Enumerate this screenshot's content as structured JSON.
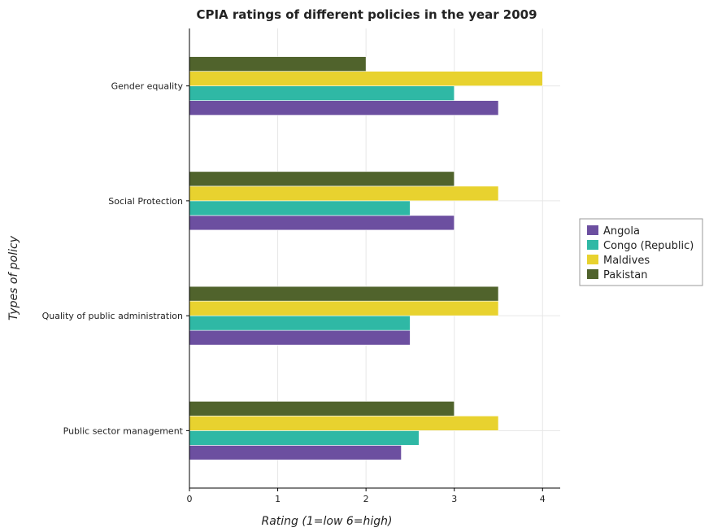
{
  "chart_data": {
    "type": "bar",
    "orientation": "horizontal",
    "title": "CPIA ratings of different policies in the year 2009",
    "xlabel": "Rating (1=low 6=high)",
    "ylabel": "Types of policy",
    "xlim": [
      0,
      4.2
    ],
    "xticks": [
      0,
      1,
      2,
      3,
      4
    ],
    "grid": true,
    "legend_position": "right",
    "categories": [
      "Gender equality",
      "Social Protection",
      "Quality of public administration",
      "Public sector management"
    ],
    "series": [
      {
        "name": "Angola",
        "color": "#6c4fa0",
        "values": [
          3.5,
          3.0,
          2.5,
          2.4
        ]
      },
      {
        "name": "Congo (Republic)",
        "color": "#2fb8a5",
        "values": [
          3.0,
          2.5,
          2.5,
          2.6
        ]
      },
      {
        "name": "Maldives",
        "color": "#e8d22f",
        "values": [
          4.0,
          3.5,
          3.5,
          3.5
        ]
      },
      {
        "name": "Pakistan",
        "color": "#50632c",
        "values": [
          2.0,
          3.0,
          3.5,
          3.0
        ]
      }
    ]
  }
}
